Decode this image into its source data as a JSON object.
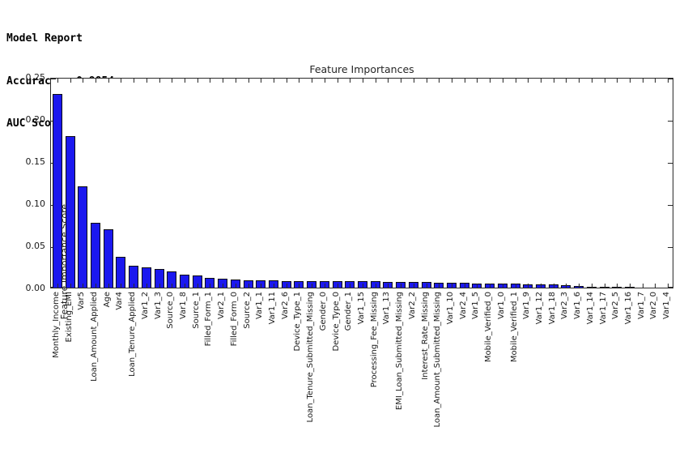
{
  "report": {
    "line1": "Model Report",
    "line2": "Accuracy : 0.9854",
    "line3": "AUC Score (Train): 0.900688"
  },
  "chart_data": {
    "type": "bar",
    "title": "Feature Importances",
    "xlabel": "",
    "ylabel": "Feature Importance Score",
    "ylim": [
      0,
      0.25
    ],
    "yticks": [
      0.0,
      0.05,
      0.1,
      0.15,
      0.2,
      0.25
    ],
    "grid": false,
    "legend": null,
    "bar_color": "#1b18ef",
    "bar_edge_color": "#0d0d12",
    "categories": [
      "Monthly_Income",
      "Existing_EMI",
      "Var5",
      "Loan_Amount_Applied",
      "Age",
      "Var4",
      "Loan_Tenure_Applied",
      "Var1_2",
      "Var1_3",
      "Source_0",
      "Var1_8",
      "Source_1",
      "Filled_Form_1",
      "Var2_1",
      "Filled_Form_0",
      "Source_2",
      "Var1_1",
      "Var1_11",
      "Var2_6",
      "Device_Type_1",
      "Loan_Tenure_Submitted_Missing",
      "Gender_0",
      "Device_Type_0",
      "Gender_1",
      "Var1_15",
      "Processing_Fee_Missing",
      "Var1_13",
      "EMI_Loan_Submitted_Missing",
      "Var2_2",
      "Interest_Rate_Missing",
      "Loan_Amount_Submitted_Missing",
      "Var1_10",
      "Var2_4",
      "Var1_5",
      "Mobile_Verified_0",
      "Var1_0",
      "Mobile_Verified_1",
      "Var1_9",
      "Var1_12",
      "Var1_18",
      "Var2_3",
      "Var1_6",
      "Var1_14",
      "Var1_17",
      "Var2_5",
      "Var1_16",
      "Var1_7",
      "Var2_0",
      "Var1_4"
    ],
    "values": [
      0.23,
      0.18,
      0.12,
      0.077,
      0.069,
      0.037,
      0.026,
      0.024,
      0.022,
      0.019,
      0.015,
      0.014,
      0.012,
      0.011,
      0.01,
      0.009,
      0.009,
      0.0085,
      0.008,
      0.0078,
      0.0078,
      0.0077,
      0.0077,
      0.0077,
      0.0075,
      0.0073,
      0.0065,
      0.0065,
      0.0063,
      0.0065,
      0.0062,
      0.0062,
      0.006,
      0.005,
      0.0048,
      0.0048,
      0.0045,
      0.0043,
      0.0043,
      0.004,
      0.0025,
      0.002,
      0.0012,
      0.001,
      0.0008,
      0.0005,
      0.0004,
      0.0002,
      0.0001
    ]
  }
}
